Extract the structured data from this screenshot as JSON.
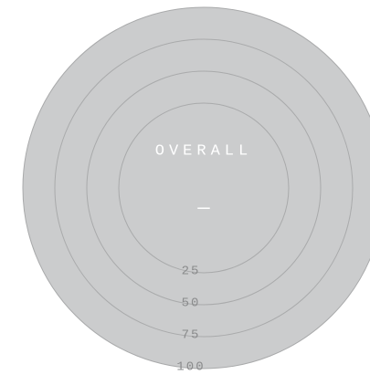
{
  "chart_data": {
    "type": "radial",
    "title": "OVERALL",
    "value": "—",
    "rlim": [
      0,
      100
    ],
    "rticks": [
      25,
      50,
      75,
      100
    ],
    "color": "#cbcccd"
  }
}
